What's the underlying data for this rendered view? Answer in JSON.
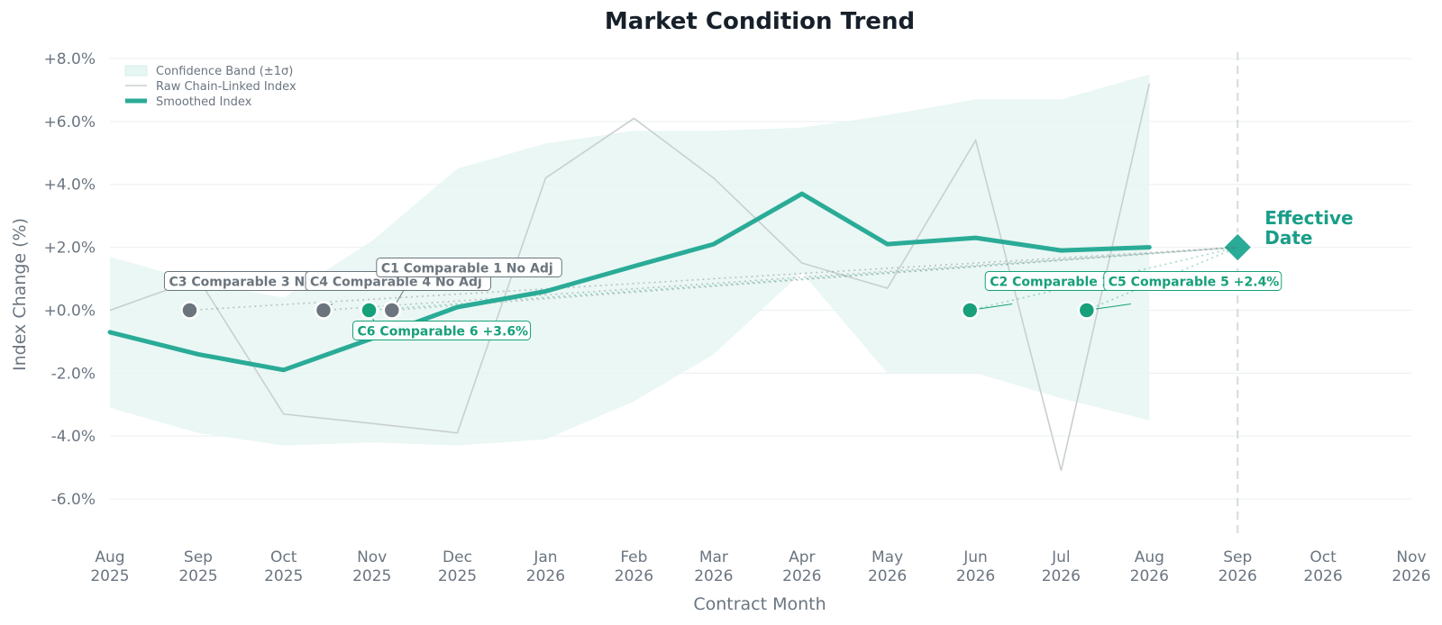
{
  "chart_data": {
    "type": "line",
    "title": "Market Condition Trend",
    "xlabel": "Contract Month",
    "ylabel": "Index Change (%)",
    "ylim": [
      -7.2,
      8.2
    ],
    "xlim": [
      "2025-08-01",
      "2026-11-01"
    ],
    "x_ticks": [
      {
        "date": "2025-08-01",
        "month": "Aug",
        "year": "2025"
      },
      {
        "date": "2025-09-01",
        "month": "Sep",
        "year": "2025"
      },
      {
        "date": "2025-10-01",
        "month": "Oct",
        "year": "2025"
      },
      {
        "date": "2025-11-01",
        "month": "Nov",
        "year": "2025"
      },
      {
        "date": "2025-12-01",
        "month": "Dec",
        "year": "2025"
      },
      {
        "date": "2026-01-01",
        "month": "Jan",
        "year": "2026"
      },
      {
        "date": "2026-02-01",
        "month": "Feb",
        "year": "2026"
      },
      {
        "date": "2026-03-01",
        "month": "Mar",
        "year": "2026"
      },
      {
        "date": "2026-04-01",
        "month": "Apr",
        "year": "2026"
      },
      {
        "date": "2026-05-01",
        "month": "May",
        "year": "2026"
      },
      {
        "date": "2026-06-01",
        "month": "Jun",
        "year": "2026"
      },
      {
        "date": "2026-07-01",
        "month": "Jul",
        "year": "2026"
      },
      {
        "date": "2026-08-01",
        "month": "Aug",
        "year": "2026"
      },
      {
        "date": "2026-09-01",
        "month": "Sep",
        "year": "2026"
      },
      {
        "date": "2026-10-01",
        "month": "Oct",
        "year": "2026"
      },
      {
        "date": "2026-11-01",
        "month": "Nov",
        "year": "2026"
      }
    ],
    "y_ticks": [
      {
        "value": 8,
        "label": "+8.0%"
      },
      {
        "value": 6,
        "label": "+6.0%"
      },
      {
        "value": 4,
        "label": "+4.0%"
      },
      {
        "value": 2,
        "label": "+2.0%"
      },
      {
        "value": 0,
        "label": "+0.0%"
      },
      {
        "value": -2,
        "label": "-2.0%"
      },
      {
        "value": -4,
        "label": "-4.0%"
      },
      {
        "value": -6,
        "label": "-6.0%"
      }
    ],
    "grid": "horizontal",
    "legend_position": "top-left",
    "series": [
      {
        "name": "Confidence Band (±1σ)",
        "kind": "band",
        "x": [
          "2025-08-01",
          "2025-09-01",
          "2025-10-01",
          "2025-11-01",
          "2025-12-01",
          "2026-01-01",
          "2026-02-01",
          "2026-03-01",
          "2026-04-01",
          "2026-05-01",
          "2026-06-01",
          "2026-07-01",
          "2026-08-01"
        ],
        "upper": [
          1.7,
          0.9,
          0.4,
          2.2,
          4.5,
          5.3,
          5.7,
          5.7,
          5.8,
          6.2,
          6.7,
          6.7,
          7.5
        ],
        "lower": [
          -3.1,
          -3.9,
          -4.3,
          -4.2,
          -4.3,
          -4.1,
          -2.9,
          -1.4,
          1.2,
          -2.0,
          -2.0,
          -2.8,
          -3.5
        ]
      },
      {
        "name": "Raw Chain-Linked Index",
        "kind": "raw",
        "x": [
          "2025-08-01",
          "2025-09-01",
          "2025-10-01",
          "2025-11-01",
          "2025-12-01",
          "2026-01-01",
          "2026-02-01",
          "2026-03-01",
          "2026-04-01",
          "2026-05-01",
          "2026-06-01",
          "2026-07-01",
          "2026-08-01"
        ],
        "values": [
          0.0,
          1.0,
          -3.3,
          -3.6,
          -3.9,
          4.2,
          6.1,
          4.2,
          1.5,
          0.7,
          5.4,
          -5.1,
          7.2
        ]
      },
      {
        "name": "Smoothed Index",
        "kind": "smoothed",
        "x": [
          "2025-08-01",
          "2025-09-01",
          "2025-10-01",
          "2025-11-01",
          "2025-12-01",
          "2026-01-01",
          "2026-02-01",
          "2026-03-01",
          "2026-04-01",
          "2026-05-01",
          "2026-06-01",
          "2026-07-01",
          "2026-08-01"
        ],
        "values": [
          -0.7,
          -1.4,
          -1.9,
          -0.9,
          0.1,
          0.6,
          1.4,
          2.1,
          3.7,
          2.1,
          2.3,
          1.9,
          2.0
        ]
      }
    ],
    "effective_date": {
      "x": "2026-09-01",
      "value": 2.0,
      "label_lines": [
        "Effective",
        "Date"
      ]
    },
    "comparables": [
      {
        "id": "C3",
        "label": "C3 Comparable 3  No",
        "date": "2025-08-29",
        "value": 0.0,
        "status": "no-adj"
      },
      {
        "id": "C4",
        "label": "C4 Comparable 4  No Adj",
        "date": "2025-10-15",
        "value": 0.0,
        "status": "no-adj"
      },
      {
        "id": "C6",
        "label": "C6 Comparable 6  +3.6%",
        "date": "2025-10-31",
        "value": 0.0,
        "status": "adj"
      },
      {
        "id": "C1",
        "label": "C1 Comparable 1  No Adj",
        "date": "2025-11-08",
        "value": 0.0,
        "status": "no-adj"
      },
      {
        "id": "C2",
        "label": "C2 Comparable 2",
        "date": "2026-05-30",
        "value": 0.0,
        "status": "adj"
      },
      {
        "id": "C5",
        "label": "C5 Comparable 5  +2.4%",
        "date": "2026-07-10",
        "value": 0.0,
        "status": "adj"
      }
    ],
    "colors": {
      "smoothed": "#2aab97",
      "band": "#e6f6f2",
      "raw": "#c9cfd1",
      "adj": "#17a07a",
      "no_adj": "#6c757d",
      "effective": "#2aab97",
      "grid": "#eef1f2"
    }
  }
}
